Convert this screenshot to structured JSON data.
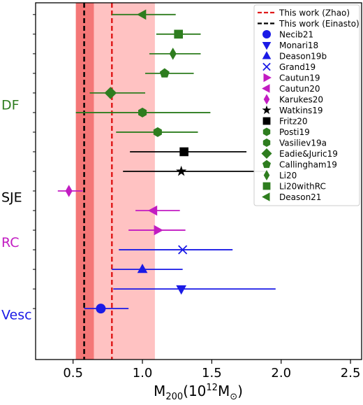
{
  "chart_data": {
    "type": "scatter",
    "xlabel_main": "M",
    "xlabel_sub": "200",
    "xlabel_paren": "(10",
    "xlabel_sup": "12",
    "xlabel_unit": "M",
    "xlabel_unit_sub": "⊙",
    "xlabel_close": ")",
    "xlim": [
      0.23,
      2.58
    ],
    "ylim": [
      -0.6,
      17.6
    ],
    "xticks": [
      {
        "value": 0.5,
        "label": "0.5"
      },
      {
        "value": 1.0,
        "label": "1.0"
      },
      {
        "value": 1.5,
        "label": "1.5"
      },
      {
        "value": 2.0,
        "label": "2.0"
      },
      {
        "value": 2.5,
        "label": "2.5"
      }
    ],
    "group_labels": [
      {
        "label": "DF",
        "y": 12.4,
        "color": "#2e7d1f"
      },
      {
        "label": "SJE",
        "y": 7.7,
        "color": "#000000"
      },
      {
        "label": "RC",
        "y": 5.4,
        "color": "#c21cc2"
      },
      {
        "label": "Vesc",
        "y": 1.7,
        "color": "#1a1ae6"
      }
    ],
    "bands": [
      {
        "name": "zhao-band",
        "x0": 0.52,
        "x1": 1.09,
        "color": "#ff9a9a",
        "opacity": 0.6
      },
      {
        "name": "einasto-band",
        "x0": 0.52,
        "x1": 0.65,
        "color": "#f26a6a",
        "opacity": 0.85
      }
    ],
    "vlines": [
      {
        "name": "This work (Zhao)",
        "x": 0.78,
        "color": "#e01b1b"
      },
      {
        "name": "This work (Einasto)",
        "x": 0.58,
        "color": "#000000"
      }
    ],
    "points": [
      {
        "name": "Deason21",
        "x": 1.0,
        "xerr": [
          0.78,
          1.24
        ],
        "y": 17,
        "marker": "triangle-left",
        "color": "#2e7d1f"
      },
      {
        "name": "Li20withRC",
        "x": 1.26,
        "xerr": [
          1.1,
          1.42
        ],
        "y": 16,
        "marker": "square",
        "color": "#2e7d1f"
      },
      {
        "name": "Li20",
        "x": 1.22,
        "xerr": [
          1.05,
          1.42
        ],
        "y": 15,
        "marker": "thin-diamond",
        "color": "#2e7d1f"
      },
      {
        "name": "Callingham19",
        "x": 1.16,
        "xerr": [
          1.02,
          1.37
        ],
        "y": 14,
        "marker": "pentagon",
        "color": "#2e7d1f"
      },
      {
        "name": "Eadie&Juric19",
        "x": 0.77,
        "xerr": [
          0.62,
          1.02
        ],
        "y": 13,
        "marker": "diamond",
        "color": "#2e7d1f"
      },
      {
        "name": "Vasiliev19a",
        "x": 1.0,
        "xerr": [
          0.52,
          1.49
        ],
        "y": 12,
        "marker": "hexagon",
        "color": "#2e7d1f"
      },
      {
        "name": "Posti19",
        "x": 1.11,
        "xerr": [
          0.81,
          1.4
        ],
        "y": 11,
        "marker": "hexagon",
        "color": "#2e7d1f"
      },
      {
        "name": "Fritz20",
        "x": 1.3,
        "xerr": [
          0.91,
          1.75
        ],
        "y": 10,
        "marker": "square",
        "color": "#000000"
      },
      {
        "name": "Watkins19",
        "x": 1.28,
        "xerr": [
          0.86,
          1.9
        ],
        "y": 9,
        "marker": "star",
        "color": "#000000"
      },
      {
        "name": "Karukes20",
        "x": 0.47,
        "xerr": [
          0.39,
          0.57
        ],
        "y": 8,
        "marker": "thin-diamond",
        "color": "#c21cc2"
      },
      {
        "name": "Cautun20",
        "x": 1.08,
        "xerr": [
          0.95,
          1.27
        ],
        "y": 7,
        "marker": "triangle-left",
        "color": "#c21cc2"
      },
      {
        "name": "Cautun19",
        "x": 1.11,
        "xerr": [
          0.9,
          1.31
        ],
        "y": 6,
        "marker": "triangle-right",
        "color": "#c21cc2"
      },
      {
        "name": "Grand19",
        "x": 1.29,
        "xerr": [
          0.83,
          1.65
        ],
        "y": 5,
        "marker": "x",
        "color": "#1a1ae6"
      },
      {
        "name": "Deason19b",
        "x": 1.0,
        "xerr": [
          0.78,
          1.29
        ],
        "y": 4,
        "marker": "triangle-up",
        "color": "#1a1ae6"
      },
      {
        "name": "Monari18",
        "x": 1.28,
        "xerr": [
          0.79,
          1.96
        ],
        "y": 3,
        "marker": "triangle-down",
        "color": "#1a1ae6"
      },
      {
        "name": "Necib21",
        "x": 0.7,
        "xerr": [
          0.58,
          0.9
        ],
        "y": 2,
        "marker": "circle",
        "color": "#1a1ae6"
      }
    ],
    "legend": {
      "placement": "top-right",
      "entries": [
        {
          "label": "This work (Zhao)",
          "kind": "dashed-line",
          "color": "#e01b1b"
        },
        {
          "label": "This work (Einasto)",
          "kind": "dashed-line",
          "color": "#000000"
        },
        {
          "label": "Necib21",
          "kind": "marker",
          "marker": "circle",
          "color": "#1a1ae6"
        },
        {
          "label": "Monari18",
          "kind": "marker",
          "marker": "triangle-down",
          "color": "#1a1ae6"
        },
        {
          "label": "Deason19b",
          "kind": "marker",
          "marker": "triangle-up",
          "color": "#1a1ae6"
        },
        {
          "label": "Grand19",
          "kind": "marker",
          "marker": "x",
          "color": "#1a1ae6"
        },
        {
          "label": "Cautun19",
          "kind": "marker",
          "marker": "triangle-right",
          "color": "#c21cc2"
        },
        {
          "label": "Cautun20",
          "kind": "marker",
          "marker": "triangle-left",
          "color": "#c21cc2"
        },
        {
          "label": "Karukes20",
          "kind": "marker",
          "marker": "thin-diamond",
          "color": "#c21cc2"
        },
        {
          "label": "Watkins19",
          "kind": "marker",
          "marker": "star",
          "color": "#000000"
        },
        {
          "label": "Fritz20",
          "kind": "marker",
          "marker": "square",
          "color": "#000000"
        },
        {
          "label": "Posti19",
          "kind": "marker",
          "marker": "hexagon",
          "color": "#2e7d1f"
        },
        {
          "label": "Vasiliev19a",
          "kind": "marker",
          "marker": "hexagon",
          "color": "#2e7d1f"
        },
        {
          "label": "Eadie&Juric19",
          "kind": "marker",
          "marker": "diamond",
          "color": "#2e7d1f"
        },
        {
          "label": "Callingham19",
          "kind": "marker",
          "marker": "pentagon",
          "color": "#2e7d1f"
        },
        {
          "label": "Li20",
          "kind": "marker",
          "marker": "thin-diamond",
          "color": "#2e7d1f"
        },
        {
          "label": "Li20withRC",
          "kind": "marker",
          "marker": "square",
          "color": "#2e7d1f"
        },
        {
          "label": "Deason21",
          "kind": "marker",
          "marker": "triangle-left",
          "color": "#2e7d1f"
        }
      ]
    }
  }
}
